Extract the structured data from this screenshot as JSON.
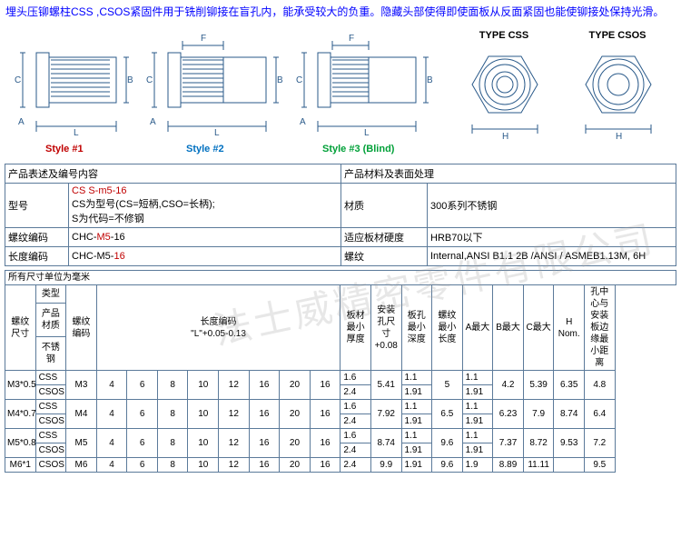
{
  "intro": "埋头压铆螺柱CSS ,CSOS紧固件用于铣削铆接在盲孔内，能承受较大的负重。隐藏头部使得即使面板从反面紧固也能使铆接处保持光滑。",
  "diagrams": {
    "style1": {
      "label": "Style #1",
      "color": "#c00000"
    },
    "style2": {
      "label": "Style #2",
      "color": "#0070c0"
    },
    "style3": {
      "label": "Style #3 (Blind)",
      "color": "#00a038"
    },
    "type_css": "TYPE CSS",
    "type_csos": "TYPE CSOS",
    "dim_labels": {
      "A": "A",
      "B": "B",
      "C": "C",
      "L": "L",
      "F": "F",
      "H": "H"
    }
  },
  "info_table": {
    "r1c1": "产品表述及编号内容",
    "r1c2": "产品材料及表面处理",
    "r2c1": "型号",
    "r2c2_l1": "CS S-m5-16",
    "r2c2_l2": "CS为型号(CS=短柄,CSO=长柄);",
    "r2c2_l3": "S为代码=不修钢",
    "r2c3": "材质",
    "r2c4": "300系列不锈钢",
    "r3c1": "螺纹编码",
    "r3c2a": "CHC-",
    "r3c2b": "M5",
    "r3c2c": "-16",
    "r3c3": "适应板材硬度",
    "r3c4": "HRB70以下",
    "r4c1": "长度编码",
    "r4c2a": "CHC-M5-",
    "r4c2b": "16",
    "r4c3": "螺纹",
    "r4c4": "Internal,ANSI B1.1 2B /ANSI /  ASMEB1.13M, 6H"
  },
  "spec": {
    "unit": "所有尺寸单位为毫米",
    "hdr": {
      "thread": "螺纹尺寸",
      "type": "类型",
      "product": "产品材质",
      "ss": "不锈钢",
      "thread_code": "螺纹编码",
      "len_code": "长度编码\n\"L\"+0.05-0.13",
      "min_thick": "板材最小厚度",
      "hole": "安装孔尺寸+0.08",
      "hole_depth": "板孔最小深度",
      "thread_len": "螺纹最小长度",
      "A": "A最大",
      "B": "B最大",
      "C": "C最大",
      "H": "H Nom.",
      "edge": "孔中心与安装板边缘最小距离"
    },
    "len_codes": [
      "4",
      "6",
      "8",
      "10",
      "12",
      "16",
      "20",
      "16"
    ],
    "rows": [
      {
        "thread": "M3*0.5",
        "v1": "CSS",
        "v2": "CSOS",
        "code": "M3",
        "t1": "1.6",
        "t2": "2.4",
        "hole": "5.41",
        "d1": "1.1",
        "d2": "1.91",
        "tl": "5",
        "Aa": "1.1",
        "Ab": "1.91",
        "B": "4.2",
        "C": "5.39",
        "H": "6.35",
        "edge": "4.8"
      },
      {
        "thread": "M4*0.7",
        "v1": "CSS",
        "v2": "CSOS",
        "code": "M4",
        "t1": "1.6",
        "t2": "2.4",
        "hole": "7.92",
        "d1": "1.1",
        "d2": "1.91",
        "tl": "6.5",
        "Aa": "1.1",
        "Ab": "1.91",
        "B": "6.23",
        "C": "7.9",
        "H": "8.74",
        "edge": "6.4"
      },
      {
        "thread": "M5*0.8",
        "v1": "CSS",
        "v2": "CSOS",
        "code": "M5",
        "t1": "1.6",
        "t2": "2.4",
        "hole": "8.74",
        "d1": "1.1",
        "d2": "1.91",
        "tl": "9.6",
        "Aa": "1.1",
        "Ab": "1.91",
        "B": "7.37",
        "C": "8.72",
        "H": "9.53",
        "edge": "7.2"
      },
      {
        "thread": "M6*1",
        "v1": "CSOS",
        "v2": "",
        "code": "M6",
        "t1": "",
        "t2": "2.4",
        "hole": "9.9",
        "d1": "",
        "d2": "1.91",
        "tl": "9.6",
        "Aa": "",
        "Ab": "1.9",
        "B": "8.89",
        "C": "11.11",
        "H": "",
        "edge": "9.5"
      }
    ]
  }
}
